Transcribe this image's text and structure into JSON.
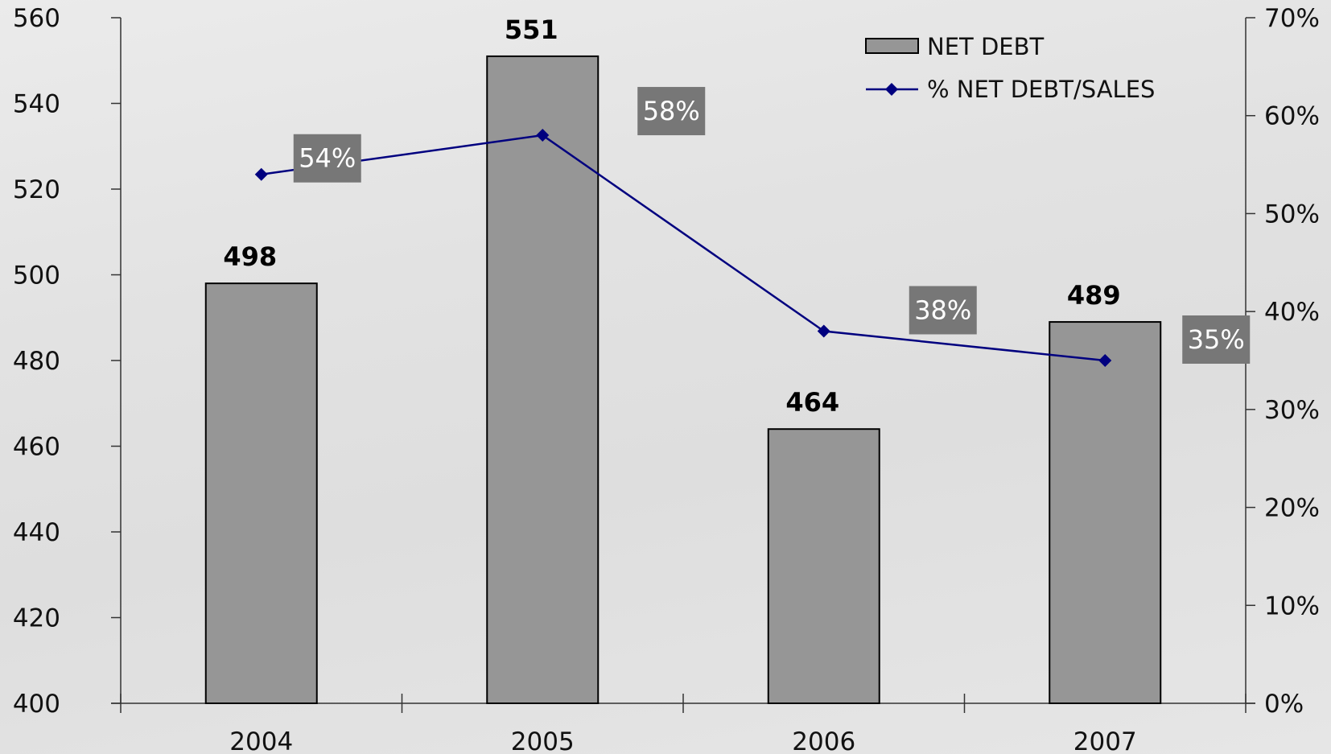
{
  "chart_data": {
    "type": "bar",
    "categories": [
      "2004",
      "2005",
      "2006",
      "2007"
    ],
    "series": [
      {
        "name": "NET DEBT",
        "type": "bar",
        "axis": "left",
        "values": [
          498,
          551,
          464,
          489
        ],
        "labels": [
          "498",
          "551",
          "464",
          "489"
        ],
        "color": "#969696"
      },
      {
        "name": "% NET DEBT/SALES",
        "type": "line",
        "axis": "right",
        "values": [
          54,
          58,
          38,
          35
        ],
        "labels": [
          "54%",
          "58%",
          "38%",
          "35%"
        ],
        "color": "#00007f"
      }
    ],
    "y_left": {
      "range": [
        400,
        560
      ],
      "ticks": [
        "400",
        "420",
        "440",
        "460",
        "480",
        "500",
        "520",
        "540",
        "560"
      ]
    },
    "y_right": {
      "range": [
        0,
        70
      ],
      "ticks": [
        "0%",
        "10%",
        "20%",
        "30%",
        "40%",
        "50%",
        "60%",
        "70%"
      ]
    },
    "grid": false,
    "legend": "top-right",
    "title": "",
    "xlabel": "",
    "ylabel": ""
  }
}
